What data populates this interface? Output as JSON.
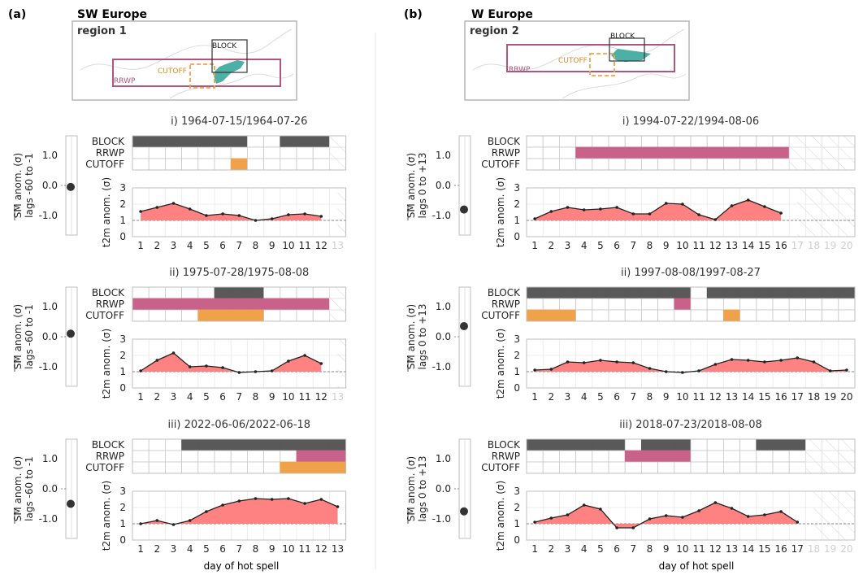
{
  "figure": {
    "xlabel": "day of hot spell",
    "row_labels": [
      "BLOCK",
      "RRWP",
      "CUTOFF"
    ],
    "sm_ylabel_top": "SM anom. (σ)",
    "t2m_ylabel": "t2m anom. (σ)",
    "sm_yticks": [
      "1.0",
      "0.0",
      "-1.0"
    ],
    "t2m_yticks": [
      "3",
      "2",
      "1",
      "0"
    ],
    "colors": {
      "block": "#595959",
      "rrwp": "#c8628a",
      "cutoff": "#f0a24a",
      "t2m_fill": "#ff7b7b",
      "t2m_line": "#222222",
      "grid": "#c8c8c8",
      "map_rrwp": "#b0567c",
      "map_cutoff": "#f0a24a",
      "map_block": "#333333",
      "map_land": "#3aa79c"
    }
  },
  "panels": [
    {
      "letter": "(a)",
      "title": "SW Europe",
      "region": "region 1",
      "sm_lag_label": "lags -60 to -1",
      "map_labels": {
        "block": "BLOCK",
        "cutoff": "CUTOFF",
        "rrwp": "RRWP"
      }
    },
    {
      "letter": "(b)",
      "title": "W Europe",
      "region": "region 2",
      "sm_lag_label": "lags 0 to +13",
      "map_labels": {
        "block": "BLOCK",
        "cutoff": "CUTOFF",
        "rrwp": "RRWP"
      }
    }
  ],
  "chart_data": [
    {
      "type": "area",
      "panel": "a",
      "title": "i) 1964-07-15/1964-07-26",
      "n_days": 12,
      "n_axis_days": 13,
      "sm_value": -0.05,
      "block": [
        1,
        1,
        1,
        1,
        1,
        1,
        1,
        0,
        0,
        1,
        1,
        1
      ],
      "rrwp": [
        0,
        0,
        0,
        0,
        0,
        0,
        0,
        0,
        0,
        0,
        0,
        0
      ],
      "cutoff": [
        0,
        0,
        0,
        0,
        0,
        0,
        1,
        0,
        0,
        0,
        0,
        0
      ],
      "t2m": [
        1.55,
        1.8,
        2.05,
        1.7,
        1.3,
        1.4,
        1.3,
        1.0,
        1.1,
        1.35,
        1.4,
        1.25
      ]
    },
    {
      "type": "area",
      "panel": "a",
      "title": "ii) 1975-07-28/1975-08-08",
      "n_days": 12,
      "n_axis_days": 13,
      "sm_value": 0.1,
      "block": [
        0,
        0,
        0,
        0,
        0,
        1,
        1,
        1,
        0,
        0,
        0,
        0
      ],
      "rrwp": [
        1,
        1,
        1,
        1,
        1,
        1,
        1,
        1,
        1,
        1,
        1,
        1
      ],
      "cutoff": [
        0,
        0,
        0,
        0,
        1,
        1,
        1,
        1,
        0,
        0,
        0,
        0
      ],
      "t2m": [
        1.05,
        1.7,
        2.15,
        1.3,
        1.35,
        1.25,
        0.95,
        1.0,
        1.05,
        1.65,
        2.0,
        1.5
      ]
    },
    {
      "type": "area",
      "panel": "a",
      "title": "iii) 2022-06-06/2022-06-18",
      "n_days": 13,
      "n_axis_days": 13,
      "sm_value": -0.5,
      "block": [
        0,
        0,
        0,
        1,
        1,
        1,
        1,
        1,
        1,
        1,
        1,
        1,
        1
      ],
      "rrwp": [
        0,
        0,
        0,
        0,
        0,
        0,
        0,
        0,
        0,
        0,
        1,
        1,
        1
      ],
      "cutoff": [
        0,
        0,
        0,
        0,
        0,
        0,
        0,
        0,
        0,
        1,
        1,
        1,
        1
      ],
      "t2m": [
        1.0,
        1.2,
        0.95,
        1.2,
        1.75,
        2.15,
        2.4,
        2.55,
        2.5,
        2.55,
        2.25,
        2.5,
        2.05
      ]
    },
    {
      "type": "area",
      "panel": "b",
      "title": "i) 1994-07-22/1994-08-06",
      "n_days": 16,
      "n_axis_days": 20,
      "sm_value": -0.8,
      "block": [
        0,
        0,
        0,
        0,
        0,
        0,
        0,
        0,
        0,
        0,
        0,
        0,
        0,
        0,
        0,
        0
      ],
      "rrwp": [
        0,
        0,
        0,
        1,
        1,
        1,
        1,
        1,
        1,
        1,
        1,
        1,
        1,
        1,
        1,
        1
      ],
      "cutoff": [
        0,
        0,
        0,
        0,
        0,
        0,
        0,
        0,
        0,
        0,
        0,
        0,
        0,
        0,
        0,
        0
      ],
      "t2m": [
        1.1,
        1.55,
        1.8,
        1.65,
        1.7,
        1.8,
        1.4,
        1.4,
        2.05,
        2.0,
        1.35,
        1.05,
        1.9,
        2.25,
        1.85,
        1.45
      ]
    },
    {
      "type": "area",
      "panel": "b",
      "title": "ii) 1997-08-08/1997-08-27",
      "n_days": 20,
      "n_axis_days": 20,
      "sm_value": 0.35,
      "block": [
        1,
        1,
        1,
        1,
        1,
        1,
        1,
        1,
        1,
        1,
        0,
        1,
        1,
        1,
        1,
        1,
        1,
        1,
        1,
        1
      ],
      "rrwp": [
        0,
        0,
        0,
        0,
        0,
        0,
        0,
        0,
        0,
        1,
        0,
        0,
        0,
        0,
        0,
        0,
        0,
        0,
        0,
        0
      ],
      "cutoff": [
        1,
        1,
        1,
        0,
        0,
        0,
        0,
        0,
        0,
        0,
        0,
        0,
        1,
        0,
        0,
        0,
        0,
        0,
        0,
        0
      ],
      "t2m": [
        1.1,
        1.15,
        1.6,
        1.55,
        1.7,
        1.6,
        1.55,
        1.2,
        1.0,
        0.95,
        1.05,
        1.45,
        1.75,
        1.7,
        1.6,
        1.7,
        1.85,
        1.6,
        1.05,
        1.1
      ]
    },
    {
      "type": "area",
      "panel": "b",
      "title": "iii) 2018-07-23/2018-08-08",
      "n_days": 17,
      "n_axis_days": 20,
      "sm_value": -0.75,
      "block": [
        1,
        1,
        1,
        1,
        1,
        1,
        0,
        1,
        1,
        1,
        0,
        0,
        0,
        0,
        1,
        1,
        1
      ],
      "rrwp": [
        0,
        0,
        0,
        0,
        0,
        0,
        1,
        1,
        1,
        1,
        0,
        0,
        0,
        0,
        0,
        0,
        0
      ],
      "cutoff": [
        0,
        0,
        0,
        0,
        0,
        0,
        0,
        0,
        0,
        0,
        0,
        0,
        0,
        0,
        0,
        0,
        0
      ],
      "t2m": [
        1.1,
        1.35,
        1.55,
        2.15,
        1.9,
        0.75,
        0.75,
        1.3,
        1.5,
        1.4,
        1.8,
        2.3,
        1.95,
        1.45,
        1.55,
        1.75,
        1.1
      ]
    }
  ]
}
